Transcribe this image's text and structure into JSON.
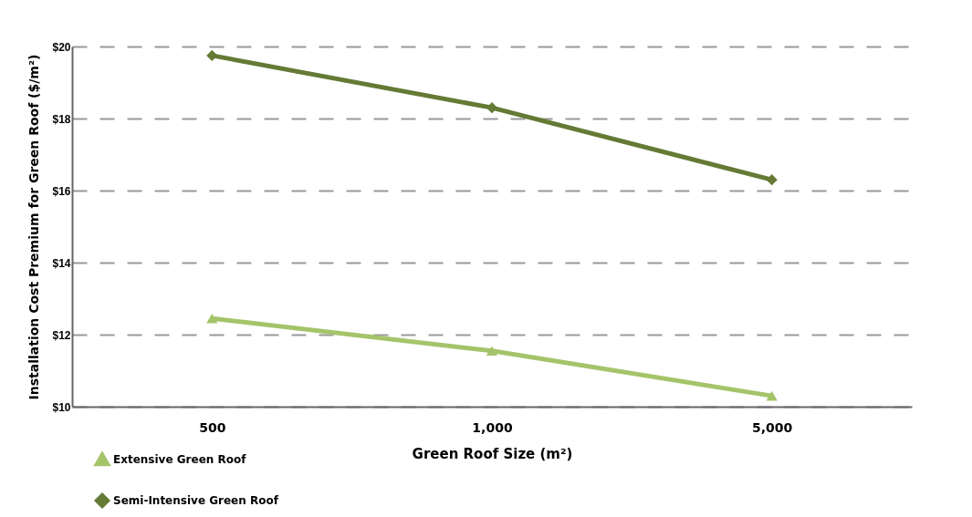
{
  "chart_data": {
    "type": "line",
    "xlabel": "Green Roof Size (m²)",
    "ylabel": "Installation Cost Premium for Green Roof ($/m²)",
    "categories": [
      "500",
      "1,000",
      "5,000"
    ],
    "series": [
      {
        "name": "Extensive Green Roof",
        "color": "#a5c46a",
        "marker": "triangle",
        "values": [
          12.45,
          11.55,
          10.3
        ]
      },
      {
        "name": "Semi-Intensive Green Roof",
        "color": "#647a35",
        "marker": "diamond",
        "values": [
          19.75,
          18.3,
          16.3
        ]
      }
    ],
    "ylim": [
      10,
      20
    ],
    "yticks": [
      {
        "value": 10,
        "label": "$10"
      },
      {
        "value": 12,
        "label": "$12"
      },
      {
        "value": 14,
        "label": "$14"
      },
      {
        "value": 16,
        "label": "$16"
      },
      {
        "value": 18,
        "label": "$18"
      },
      {
        "value": 20,
        "label": "$20"
      }
    ],
    "grid": "y",
    "legend": "bottom left",
    "line_style": "solid"
  }
}
